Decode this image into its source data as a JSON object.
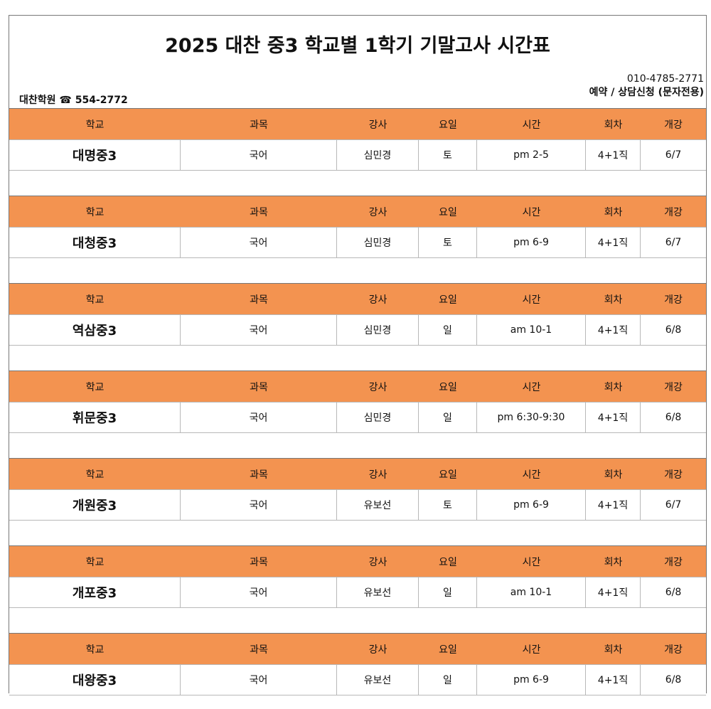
{
  "title": "2025 대찬 중3 학교별 1학기 기말고사 시간표",
  "academy": "대찬학원 ☎ 554-2772",
  "contact": {
    "phone": "010-4785-2771",
    "note": "예약 / 상담신청 (문자전용)"
  },
  "headers": [
    "학교",
    "과목",
    "강사",
    "요일",
    "시간",
    "회차",
    "개강"
  ],
  "rows": [
    [
      "대명중3",
      "국어",
      "심민경",
      "토",
      "pm 2-5",
      "4+1직",
      "6/7"
    ],
    [
      "대청중3",
      "국어",
      "심민경",
      "토",
      "pm 6-9",
      "4+1직",
      "6/7"
    ],
    [
      "역삼중3",
      "국어",
      "심민경",
      "일",
      "am 10-1",
      "4+1직",
      "6/8"
    ],
    [
      "휘문중3",
      "국어",
      "심민경",
      "일",
      "pm 6:30-9:30",
      "4+1직",
      "6/8"
    ],
    [
      "개원중3",
      "국어",
      "유보선",
      "토",
      "pm 6-9",
      "4+1직",
      "6/7"
    ],
    [
      "개포중3",
      "국어",
      "유보선",
      "일",
      "am 10-1",
      "4+1직",
      "6/8"
    ],
    [
      "대왕중3",
      "국어",
      "유보선",
      "일",
      "pm 6-9",
      "4+1직",
      "6/8"
    ]
  ]
}
